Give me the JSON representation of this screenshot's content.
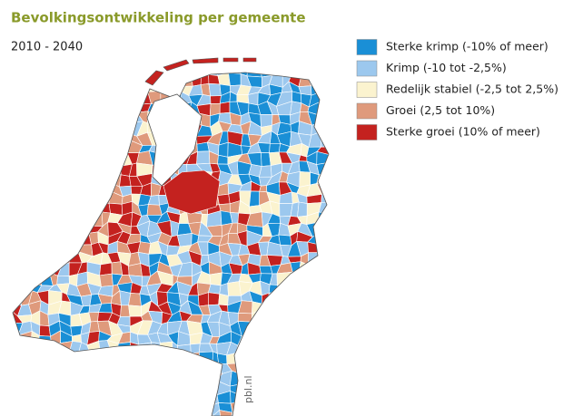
{
  "title": "Bevolkingsontwikkeling per gemeente",
  "subtitle": "2010 - 2040",
  "legend": [
    {
      "label": "Sterke krimp (-10% of meer)",
      "color": "#1a8fd6"
    },
    {
      "label": "Krimp (-10 tot -2,5%)",
      "color": "#9cc8ee"
    },
    {
      "label": "Redelijk stabiel (-2,5 tot 2,5%)",
      "color": "#fbf3cf"
    },
    {
      "label": "Groei (2,5 tot 10%)",
      "color": "#df9a7c"
    },
    {
      "label": "Sterke groei (10% of meer)",
      "color": "#c4221f"
    }
  ],
  "source": "pbl.nl"
}
